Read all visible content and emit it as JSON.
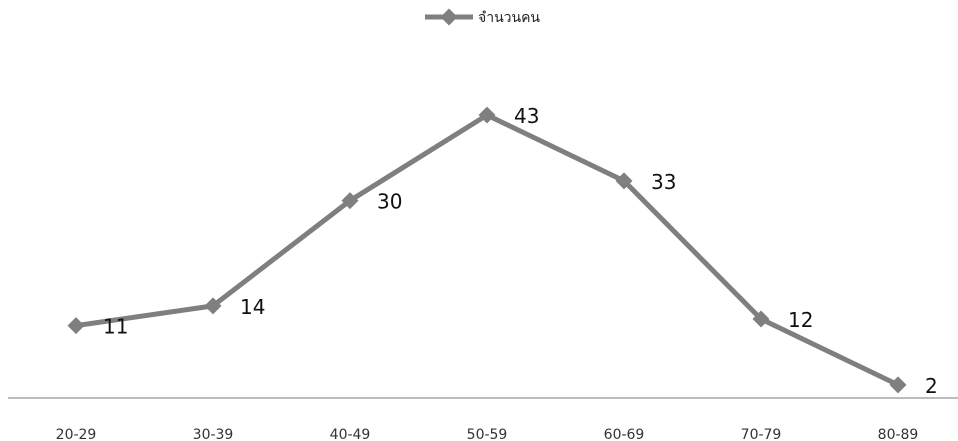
{
  "chart_data": {
    "type": "line",
    "categories": [
      "20-29",
      "30-39",
      "40-49",
      "50-59",
      "60-69",
      "70-79",
      "80-89"
    ],
    "series": [
      {
        "name": "จำนวนคน",
        "values": [
          11,
          14,
          30,
          43,
          33,
          12,
          2
        ]
      }
    ],
    "ylim": [
      0,
      45
    ],
    "grid": false,
    "legend_position": "top-center",
    "series_color": "#7f7f7f",
    "axis_color": "#a6a6a6",
    "marker": "diamond",
    "data_labels": true
  }
}
